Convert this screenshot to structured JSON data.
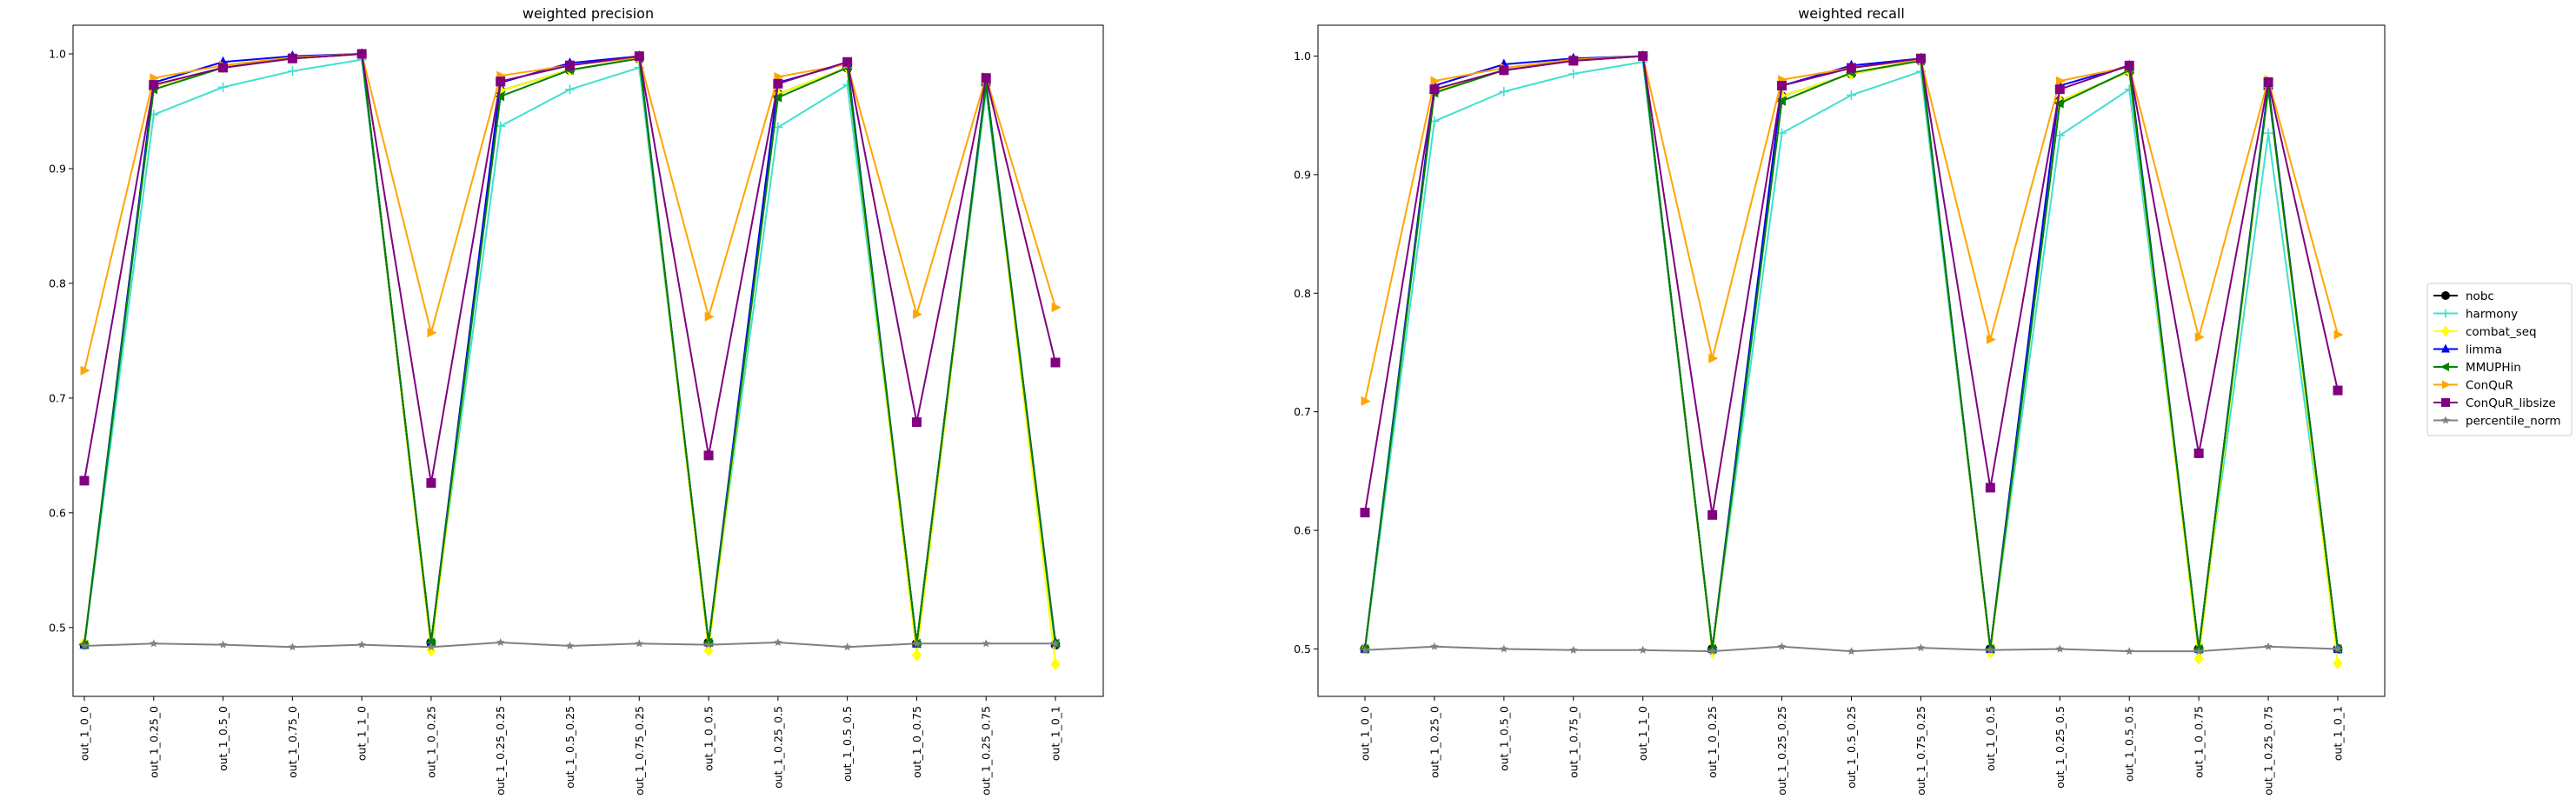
{
  "chart_data": [
    {
      "type": "line",
      "title": "weighted precision",
      "xlabel": "",
      "ylabel": "",
      "ylim": [
        0.44,
        1.025
      ],
      "yticks": [
        "0.5",
        "0.6",
        "0.7",
        "0.8",
        "0.9",
        "1.0"
      ],
      "grid": false,
      "categories": [
        "out_1_0_0",
        "out_1_0.25_0",
        "out_1_0.5_0",
        "out_1_0.75_0",
        "out_1_1_0",
        "out_1_0_0.25",
        "out_1_0.25_0.25",
        "out_1_0.5_0.25",
        "out_1_0.75_0.25",
        "out_1_0_0.5",
        "out_1_0.25_0.5",
        "out_1_0.5_0.5",
        "out_1_0_0.75",
        "out_1_0.25_0.75",
        "out_1_0_1"
      ],
      "series": [
        {
          "name": "nobc",
          "values": [
            0.485,
            0.972,
            0.988,
            0.996,
            1.0,
            0.487,
            0.968,
            0.986,
            0.996,
            0.487,
            0.965,
            0.988,
            0.486,
            0.975,
            0.485
          ]
        },
        {
          "name": "harmony",
          "values": [
            0.485,
            0.947,
            0.971,
            0.985,
            0.995,
            0.487,
            0.937,
            0.969,
            0.988,
            0.487,
            0.936,
            0.973,
            0.486,
            0.968,
            0.485
          ]
        },
        {
          "name": "combat_seq",
          "values": [
            0.487,
            0.972,
            0.988,
            0.996,
            1.0,
            0.48,
            0.968,
            0.986,
            0.996,
            0.48,
            0.965,
            0.988,
            0.476,
            0.975,
            0.468
          ]
        },
        {
          "name": "limma",
          "values": [
            0.485,
            0.975,
            0.993,
            0.998,
            1.0,
            0.487,
            0.975,
            0.992,
            0.998,
            0.487,
            0.975,
            0.992,
            0.486,
            0.975,
            0.487
          ]
        },
        {
          "name": "MMUPHin",
          "values": [
            0.485,
            0.969,
            0.988,
            0.996,
            1.0,
            0.487,
            0.963,
            0.986,
            0.996,
            0.487,
            0.962,
            0.988,
            0.486,
            0.973,
            0.486
          ]
        },
        {
          "name": "ConQuR",
          "values": [
            0.724,
            0.979,
            0.99,
            0.997,
            1.0,
            0.757,
            0.981,
            0.99,
            0.997,
            0.771,
            0.98,
            0.991,
            0.773,
            0.98,
            0.779
          ]
        },
        {
          "name": "ConQuR_libsize",
          "values": [
            0.628,
            0.973,
            0.988,
            0.996,
            1.0,
            0.626,
            0.976,
            0.99,
            0.998,
            0.65,
            0.974,
            0.993,
            0.679,
            0.979,
            0.731
          ]
        },
        {
          "name": "percentile_norm",
          "values": [
            0.484,
            0.486,
            0.485,
            0.483,
            0.485,
            0.483,
            0.487,
            0.484,
            0.486,
            0.485,
            0.487,
            0.483,
            0.486,
            0.486,
            0.486
          ]
        }
      ]
    },
    {
      "type": "line",
      "title": "weighted recall",
      "xlabel": "",
      "ylabel": "",
      "ylim": [
        0.46,
        1.026
      ],
      "yticks": [
        "0.5",
        "0.6",
        "0.7",
        "0.8",
        "0.9",
        "1.0"
      ],
      "grid": false,
      "categories": [
        "out_1_0_0",
        "out_1_0.25_0",
        "out_1_0.5_0",
        "out_1_0.75_0",
        "out_1_1_0",
        "out_1_0_0.25",
        "out_1_0.25_0.25",
        "out_1_0.5_0.25",
        "out_1_0.75_0.25",
        "out_1_0_0.5",
        "out_1_0.25_0.5",
        "out_1_0.5_0.5",
        "out_1_0_0.75",
        "out_1_0.25_0.75",
        "out_1_0_1"
      ],
      "series": [
        {
          "name": "nobc",
          "values": [
            0.5,
            0.971,
            0.988,
            0.996,
            1.0,
            0.5,
            0.966,
            0.985,
            0.996,
            0.5,
            0.962,
            0.987,
            0.5,
            0.974,
            0.5
          ]
        },
        {
          "name": "harmony",
          "values": [
            0.5,
            0.945,
            0.97,
            0.985,
            0.995,
            0.5,
            0.935,
            0.967,
            0.987,
            0.5,
            0.933,
            0.972,
            0.5,
            0.935,
            0.5
          ]
        },
        {
          "name": "combat_seq",
          "values": [
            0.5,
            0.971,
            0.988,
            0.996,
            1.0,
            0.497,
            0.966,
            0.985,
            0.996,
            0.497,
            0.962,
            0.987,
            0.492,
            0.974,
            0.488
          ]
        },
        {
          "name": "limma",
          "values": [
            0.5,
            0.975,
            0.993,
            0.998,
            1.0,
            0.5,
            0.975,
            0.992,
            0.998,
            0.5,
            0.975,
            0.992,
            0.5,
            0.975,
            0.5
          ]
        },
        {
          "name": "MMUPHin",
          "values": [
            0.5,
            0.969,
            0.988,
            0.996,
            1.0,
            0.5,
            0.962,
            0.986,
            0.996,
            0.5,
            0.96,
            0.988,
            0.5,
            0.972,
            0.5
          ]
        },
        {
          "name": "ConQuR",
          "values": [
            0.709,
            0.979,
            0.99,
            0.997,
            1.0,
            0.745,
            0.98,
            0.99,
            0.997,
            0.761,
            0.979,
            0.991,
            0.763,
            0.98,
            0.765
          ]
        },
        {
          "name": "ConQuR_libsize",
          "values": [
            0.615,
            0.972,
            0.988,
            0.996,
            1.0,
            0.613,
            0.975,
            0.99,
            0.998,
            0.636,
            0.972,
            0.992,
            0.665,
            0.978,
            0.718
          ]
        },
        {
          "name": "percentile_norm",
          "values": [
            0.499,
            0.502,
            0.5,
            0.499,
            0.499,
            0.498,
            0.502,
            0.498,
            0.501,
            0.499,
            0.5,
            0.498,
            0.498,
            0.502,
            0.5
          ]
        }
      ]
    }
  ],
  "legend": {
    "placement": "right",
    "entries": [
      {
        "name": "nobc",
        "color": "#000000",
        "marker": "circle"
      },
      {
        "name": "harmony",
        "color": "#40e0d0",
        "marker": "plus"
      },
      {
        "name": "combat_seq",
        "color": "#ffff00",
        "marker": "diamond"
      },
      {
        "name": "limma",
        "color": "#0000ff",
        "marker": "triangle-up"
      },
      {
        "name": "MMUPHin",
        "color": "#008000",
        "marker": "triangle-left"
      },
      {
        "name": "ConQuR",
        "color": "#ffa500",
        "marker": "triangle-right"
      },
      {
        "name": "ConQuR_libsize",
        "color": "#800080",
        "marker": "square"
      },
      {
        "name": "percentile_norm",
        "color": "#808080",
        "marker": "star"
      }
    ]
  }
}
